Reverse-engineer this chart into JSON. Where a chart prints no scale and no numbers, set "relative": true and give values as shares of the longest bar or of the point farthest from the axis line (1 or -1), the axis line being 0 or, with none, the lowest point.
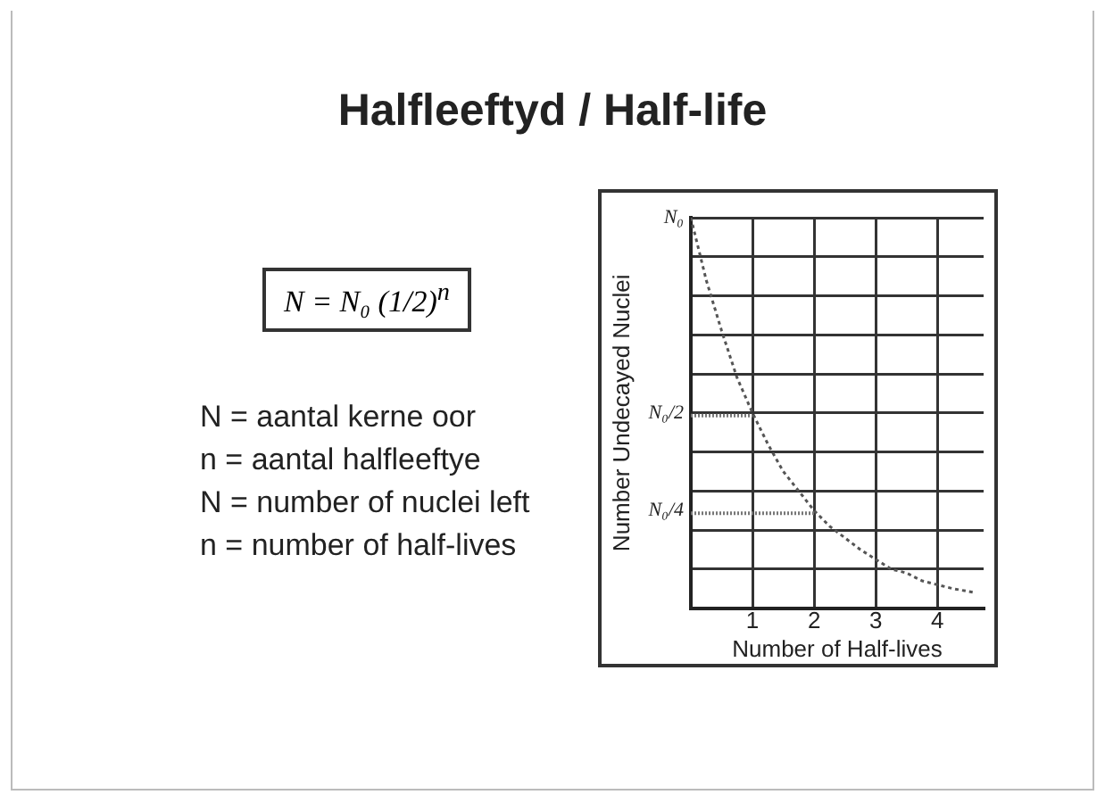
{
  "chart_data": {
    "type": "line",
    "title": "Halfleeftyd / Half-life",
    "xlabel": "Number of Half-lives",
    "ylabel": "Number Undecayed Nuclei",
    "x": [
      0,
      0.25,
      0.5,
      0.75,
      1,
      1.25,
      1.5,
      1.75,
      2,
      2.25,
      2.5,
      2.75,
      3,
      3.25,
      3.5,
      3.75,
      4,
      4.25,
      4.6
    ],
    "series": [
      {
        "color": "#555555",
        "values": [
          1,
          0.84,
          0.71,
          0.59,
          0.5,
          0.42,
          0.35,
          0.3,
          0.25,
          0.21,
          0.18,
          0.15,
          0.125,
          0.1,
          0.09,
          0.07,
          0.06,
          0.05,
          0.04
        ]
      }
    ],
    "xlim": [
      0,
      4.75
    ],
    "xticks": [
      {
        "value": 0,
        "label": null
      },
      1,
      2,
      3,
      4
    ],
    "relative": true,
    "grid": true,
    "legend": false,
    "marker": "none",
    "line_style": "dotted",
    "annotations": [
      "N = N₀ (1/2)$^{n}$",
      "N = aantal kerne oor",
      "n = aantal halfleeftye",
      "N = number of nuclei left",
      "n = number of half-lives",
      {
        "text": "N₀",
        "x": 0,
        "y": 1
      },
      {
        "text": "N₀/2",
        "x": 1,
        "y": 0.5
      },
      {
        "text": "N₀/4",
        "x": 2,
        "y": 0.25
      }
    ]
  }
}
